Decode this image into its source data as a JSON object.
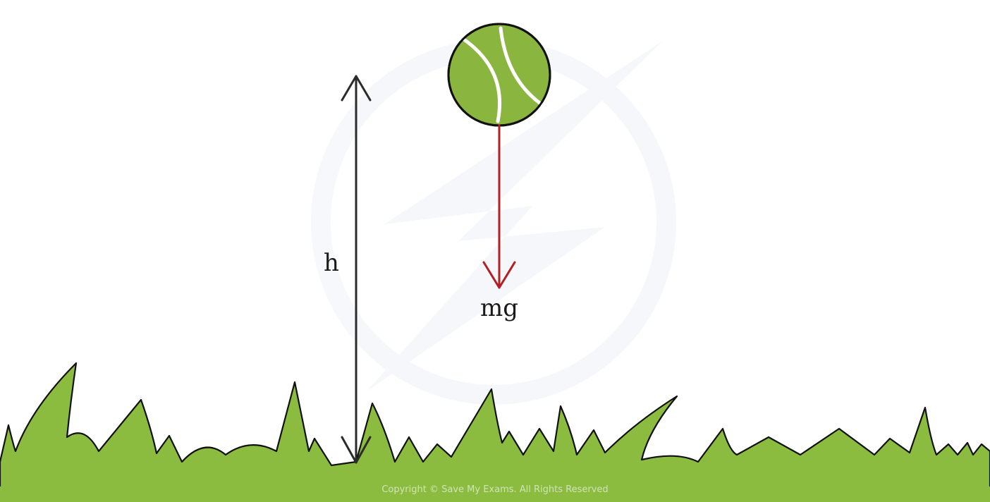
{
  "labels": {
    "height": "h",
    "weight": "mg"
  },
  "copyright": "Copyright © Save My Exams. All Rights Reserved",
  "icons": {
    "ball": "tennis-ball-icon",
    "watermark": "lightning-bolt-logo"
  },
  "colors": {
    "grass": "#8bbc3f",
    "ball": "#8ab640",
    "weight_arrow": "#b21f24",
    "height_arrow": "#2b2b2b",
    "outline": "#111111",
    "watermark": "#eef2f8"
  }
}
